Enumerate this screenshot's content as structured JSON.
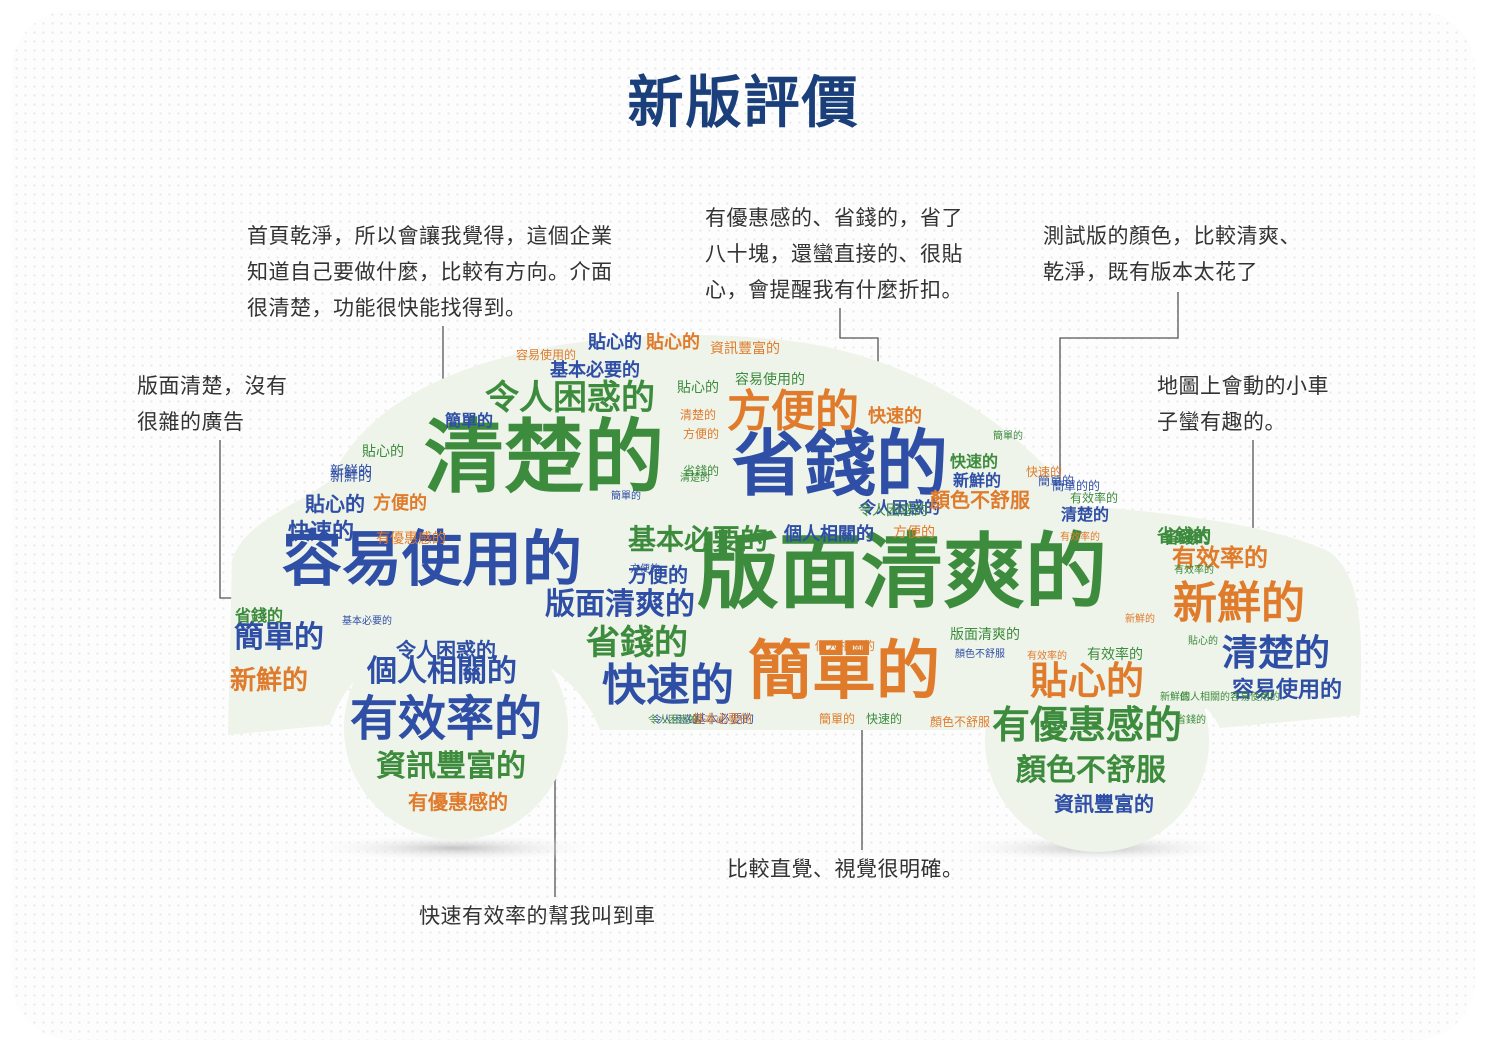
{
  "title": "新版評價",
  "comments": {
    "c1": "首頁乾淨，所以會讓我覺得，這個企業\n知道自己要做什麼，比較有方向。介面\n很清楚，功能很快能找得到。",
    "c2": "有優惠感的、省錢的，省了\n八十塊，還蠻直接的、很貼\n心，會提醒我有什麼折扣。",
    "c3": "測試版的顏色，比較清爽、\n乾淨，既有版本太花了",
    "c4": "版面清楚，沒有\n很雜的廣告",
    "c5": "地圖上會動的小車\n子蠻有趣的。",
    "c6": "比較直覺、視覺很明確。",
    "c7": "快速有效率的幫我叫到車"
  },
  "colors": {
    "title": "#1b3f7a",
    "green": "#3d8b3d",
    "blue": "#2f4ea6",
    "orange": "#e07b2c",
    "cloud_shape": "#eef4ea"
  },
  "words": [
    {
      "t": "版面清爽的",
      "c": "g"
    },
    {
      "t": "容易使用的",
      "c": "b"
    },
    {
      "t": "清楚的",
      "c": "g"
    },
    {
      "t": "省錢的",
      "c": "b"
    },
    {
      "t": "簡單的",
      "c": "o"
    },
    {
      "t": "有效率的",
      "c": "b"
    },
    {
      "t": "有優惠感的",
      "c": "g"
    },
    {
      "t": "快速的",
      "c": "b"
    },
    {
      "t": "方便的",
      "c": "o"
    },
    {
      "t": "令人困惑的",
      "c": "g"
    },
    {
      "t": "個人相關的",
      "c": "b"
    },
    {
      "t": "新鮮的",
      "c": "o"
    },
    {
      "t": "清楚的",
      "c": "b"
    },
    {
      "t": "貼心的",
      "c": "o"
    },
    {
      "t": "資訊豐富的",
      "c": "g"
    },
    {
      "t": "顏色不舒服",
      "c": "g"
    },
    {
      "t": "簡單的",
      "c": "b"
    },
    {
      "t": "省錢的",
      "c": "g"
    },
    {
      "t": "版面清爽的",
      "c": "b"
    },
    {
      "t": "基本必要的",
      "c": "g"
    },
    {
      "t": "有效率的",
      "c": "o"
    },
    {
      "t": "新鮮的",
      "c": "o"
    },
    {
      "t": "容易使用的",
      "c": "b"
    },
    {
      "t": "有優惠感的",
      "c": "o"
    },
    {
      "t": "資訊豐富的",
      "c": "b"
    },
    {
      "t": "貼心的",
      "c": "b"
    },
    {
      "t": "快速的",
      "c": "b"
    },
    {
      "t": "方便的",
      "c": "b"
    },
    {
      "t": "個人相關的",
      "c": "b"
    },
    {
      "t": "令人困惑的",
      "c": "b"
    },
    {
      "t": "顏色不舒服",
      "c": "o"
    },
    {
      "t": "基本必要的",
      "c": "b"
    },
    {
      "t": "簡單的",
      "c": "b"
    },
    {
      "t": "貼心的",
      "c": "b"
    },
    {
      "t": "容易使用的",
      "c": "g"
    },
    {
      "t": "新鮮的",
      "c": "b"
    },
    {
      "t": "簡單的",
      "c": "b"
    },
    {
      "t": "有效率的",
      "c": "g"
    },
    {
      "t": "清楚的",
      "c": "b"
    },
    {
      "t": "省錢的",
      "c": "g"
    },
    {
      "t": "貼心的",
      "c": "o"
    },
    {
      "t": "簡單的的",
      "c": "b"
    },
    {
      "t": "容易使用的",
      "c": "o"
    },
    {
      "t": "資訊豐富的",
      "c": "o"
    },
    {
      "t": "基本必要的",
      "c": "b"
    },
    {
      "t": "方便的",
      "c": "b"
    },
    {
      "t": "貼心的",
      "c": "g"
    },
    {
      "t": "容易使用的",
      "c": "g"
    },
    {
      "t": "清楚的",
      "c": "o"
    },
    {
      "t": "方便的",
      "c": "o"
    },
    {
      "t": "省錢的",
      "c": "g"
    },
    {
      "t": "新鮮的",
      "c": "b"
    },
    {
      "t": "省錢的",
      "c": "g"
    },
    {
      "t": "貼心的",
      "c": "g"
    },
    {
      "t": "快速的",
      "c": "o"
    },
    {
      "t": "方便的",
      "c": "o"
    },
    {
      "t": "快速的",
      "c": "g"
    },
    {
      "t": "新鮮的",
      "c": "b"
    },
    {
      "t": "簡單的",
      "c": "g"
    },
    {
      "t": "有效率的",
      "c": "g"
    },
    {
      "t": "令人困惑的",
      "c": "b"
    },
    {
      "t": "顏色不舒服",
      "c": "o"
    },
    {
      "t": "個人相關的",
      "c": "g"
    },
    {
      "t": "方便的",
      "c": "o"
    },
    {
      "t": "個人相關的",
      "c": "o"
    },
    {
      "t": "快速的",
      "c": "o"
    },
    {
      "t": "版面清爽的",
      "c": "g"
    },
    {
      "t": "簡單的",
      "c": "o"
    },
    {
      "t": "有效率的",
      "c": "o"
    },
    {
      "t": "令人困惑的",
      "c": "b"
    },
    {
      "t": "基本必要的",
      "c": "o"
    },
    {
      "t": "新鮮的",
      "c": "g"
    },
    {
      "t": "快速的",
      "c": "g"
    },
    {
      "t": "顏色不舒服",
      "c": "b"
    },
    {
      "t": "省錢的",
      "c": "g"
    },
    {
      "t": "簡單的",
      "c": "b"
    },
    {
      "t": "新鮮的",
      "c": "o"
    },
    {
      "t": "清楚的",
      "c": "g"
    },
    {
      "t": "省錢的",
      "c": "g"
    },
    {
      "t": "基本必要的",
      "c": "b"
    },
    {
      "t": "令人困惑的",
      "c": "g"
    },
    {
      "t": "有效率的",
      "c": "g"
    },
    {
      "t": "有優惠感的",
      "c": "o"
    },
    {
      "t": "令人困惑的",
      "c": "g"
    },
    {
      "t": "貼心的",
      "c": "g"
    },
    {
      "t": "有效率的",
      "c": "o"
    }
  ]
}
